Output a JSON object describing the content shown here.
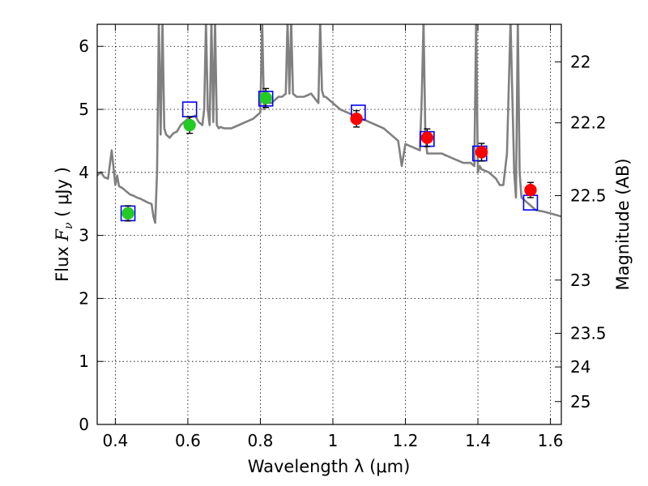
{
  "chart_data": {
    "type": "scatter",
    "xlabel": "Wavelength  λ (μm)",
    "ylabel_prefix": "Flux  ",
    "ylabel_var": "F",
    "ylabel_sub": "ν",
    "ylabel_suffix": "  ( μJy )",
    "y2label": "Magnitude (AB)",
    "xlim": [
      0.35,
      1.63
    ],
    "ylim": [
      0,
      6.35
    ],
    "grid": true,
    "x_ticks": [
      0.4,
      0.6,
      0.8,
      1.0,
      1.2,
      1.4,
      1.6
    ],
    "x_tick_labels": [
      "0.4",
      "0.6",
      "0.8",
      "1",
      "1.2",
      "1.4",
      "1.6"
    ],
    "y_ticks": [
      0,
      1,
      2,
      3,
      4,
      5,
      6
    ],
    "y_tick_labels": [
      "0",
      "1",
      "2",
      "3",
      "4",
      "5",
      "6"
    ],
    "y2_ticks": [
      22,
      22.2,
      22.5,
      23,
      23.5,
      24,
      25
    ],
    "y2_tick_labels": [
      "22",
      "22.2",
      "22.5",
      "23",
      "23.5",
      "24",
      "25"
    ],
    "colors": {
      "model": "#808080",
      "optical": "#22cc22",
      "nir": "#ff0000",
      "model_box": "#0000ff",
      "errorbar": "#000000"
    },
    "series": [
      {
        "marker": "model-spectrum",
        "x": [
          0.35,
          0.36,
          0.37,
          0.38,
          0.39,
          0.4,
          0.405,
          0.41,
          0.42,
          0.43,
          0.44,
          0.45,
          0.46,
          0.47,
          0.48,
          0.49,
          0.5,
          0.505,
          0.51,
          0.515,
          0.52,
          0.525,
          0.53,
          0.535,
          0.54,
          0.55,
          0.56,
          0.57,
          0.58,
          0.59,
          0.6,
          0.61,
          0.62,
          0.63,
          0.64,
          0.645,
          0.65,
          0.655,
          0.66,
          0.665,
          0.67,
          0.675,
          0.68,
          0.685,
          0.69,
          0.7,
          0.72,
          0.74,
          0.76,
          0.78,
          0.8,
          0.805,
          0.81,
          0.815,
          0.82,
          0.83,
          0.84,
          0.85,
          0.86,
          0.87,
          0.875,
          0.88,
          0.885,
          0.89,
          0.9,
          0.92,
          0.94,
          0.96,
          0.965,
          0.97,
          0.975,
          0.98,
          1.0,
          1.02,
          1.04,
          1.06,
          1.08,
          1.1,
          1.12,
          1.14,
          1.16,
          1.18,
          1.19,
          1.2,
          1.22,
          1.24,
          1.245,
          1.25,
          1.255,
          1.26,
          1.28,
          1.3,
          1.32,
          1.34,
          1.36,
          1.38,
          1.39,
          1.395,
          1.4,
          1.405,
          1.41,
          1.43,
          1.45,
          1.46,
          1.47,
          1.48,
          1.49,
          1.5,
          1.505,
          1.51,
          1.515,
          1.52,
          1.53,
          1.54,
          1.55,
          1.56,
          1.58,
          1.6,
          1.63
        ],
        "y": [
          3.95,
          4.0,
          3.92,
          3.9,
          4.35,
          3.8,
          3.95,
          3.78,
          3.75,
          3.7,
          3.65,
          3.63,
          3.6,
          3.58,
          3.55,
          3.52,
          3.5,
          3.3,
          3.2,
          4.0,
          6.4,
          4.6,
          6.4,
          4.7,
          4.6,
          4.55,
          4.62,
          4.65,
          4.75,
          4.8,
          4.85,
          4.88,
          4.9,
          4.8,
          4.75,
          5.0,
          6.4,
          5.0,
          4.75,
          6.4,
          4.8,
          6.4,
          4.75,
          4.7,
          4.72,
          4.7,
          4.7,
          4.75,
          4.8,
          4.85,
          4.95,
          6.4,
          5.0,
          5.1,
          5.1,
          5.1,
          5.15,
          5.2,
          5.2,
          5.25,
          6.4,
          5.25,
          6.4,
          5.25,
          5.2,
          5.2,
          5.25,
          5.1,
          6.4,
          5.3,
          5.2,
          5.2,
          5.1,
          5.0,
          4.95,
          4.9,
          4.85,
          4.8,
          4.75,
          4.7,
          4.6,
          4.5,
          4.1,
          4.45,
          4.4,
          4.35,
          5.2,
          6.4,
          4.6,
          4.3,
          4.3,
          4.3,
          4.25,
          4.2,
          4.15,
          4.15,
          4.1,
          6.4,
          4.0,
          4.1,
          4.05,
          4.0,
          3.9,
          3.8,
          3.8,
          4.3,
          6.4,
          4.0,
          3.6,
          6.4,
          4.0,
          3.6,
          3.55,
          3.5,
          3.45,
          3.4,
          3.38,
          3.35,
          3.3
        ]
      },
      {
        "marker": "model-box",
        "x": [
          0.435,
          0.605,
          0.815,
          1.07,
          1.26,
          1.405,
          1.545
        ],
        "y": [
          3.35,
          5.0,
          5.17,
          4.95,
          4.53,
          4.3,
          3.52
        ]
      },
      {
        "marker": "optical-photometry",
        "x": [
          0.435,
          0.605,
          0.815
        ],
        "y": [
          3.35,
          4.75,
          5.18
        ],
        "err": [
          0.12,
          0.13,
          0.15
        ]
      },
      {
        "marker": "nir-photometry",
        "x": [
          1.065,
          1.26,
          1.41,
          1.545
        ],
        "y": [
          4.85,
          4.55,
          4.32,
          3.72
        ],
        "err": [
          0.13,
          0.14,
          0.14,
          0.12
        ]
      }
    ]
  }
}
